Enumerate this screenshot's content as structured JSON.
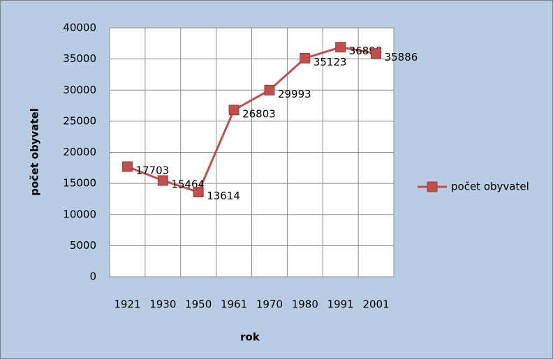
{
  "chart_data": {
    "type": "line",
    "categories": [
      "1921",
      "1930",
      "1950",
      "1961",
      "1970",
      "1980",
      "1991",
      "2001"
    ],
    "series": [
      {
        "name": "počet obyvatel",
        "color": "#c0504d",
        "values": [
          17703,
          15464,
          13614,
          26803,
          29993,
          35123,
          36898,
          35886
        ]
      }
    ],
    "x_label": "rok",
    "y_label": "počet obyvatel",
    "ylim": [
      0,
      40000
    ],
    "yticks": [
      0,
      5000,
      10000,
      15000,
      20000,
      25000,
      30000,
      35000,
      40000
    ],
    "grid": true,
    "legend": "right",
    "data_labels": true
  }
}
